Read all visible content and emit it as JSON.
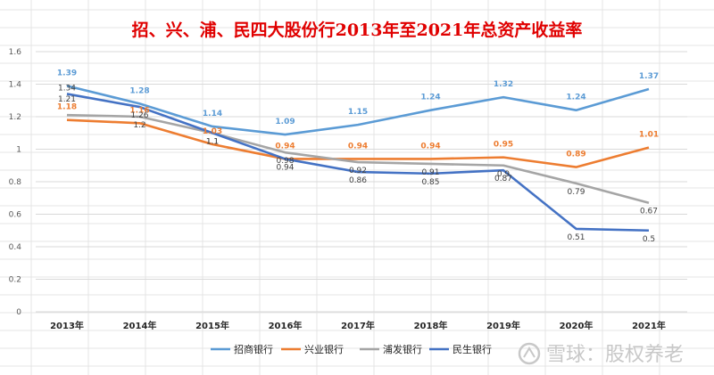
{
  "chart_data": {
    "type": "line",
    "title": "招、兴、浦、民四大股份行2013年至2021年总资产收益率",
    "categories": [
      "2013年",
      "2014年",
      "2015年",
      "2016年",
      "2017年",
      "2018年",
      "2019年",
      "2020年",
      "2021年"
    ],
    "ylim": [
      0,
      1.6
    ],
    "yticks": [
      "0",
      "0.2",
      "0.4",
      "0.6",
      "0.8",
      "1",
      "1.2",
      "1.4",
      "1.6"
    ],
    "grid": true,
    "legend_position": "bottom",
    "series": [
      {
        "name": "招商银行",
        "color": "#5b9bd5",
        "values": [
          1.39,
          1.28,
          1.14,
          1.09,
          1.15,
          1.24,
          1.32,
          1.24,
          1.37
        ],
        "labels": [
          "1.39",
          "1.28",
          "1.14",
          "1.09",
          "1.15",
          "1.24",
          "1.32",
          "1.24",
          "1.37"
        ],
        "bold": true
      },
      {
        "name": "兴业银行",
        "color": "#ed7d31",
        "values": [
          1.18,
          1.16,
          1.03,
          0.94,
          0.94,
          0.94,
          0.95,
          0.89,
          1.01
        ],
        "labels": [
          "1.18",
          "1.16",
          "1.03",
          "0.94",
          "0.94",
          "0.94",
          "0.95",
          "0.89",
          "1.01"
        ],
        "bold": true
      },
      {
        "name": "浦发银行",
        "color": "#a5a5a5",
        "values": [
          1.21,
          1.2,
          1.1,
          0.98,
          0.92,
          0.91,
          0.9,
          0.79,
          0.67
        ],
        "labels": [
          "1.21",
          "1.2",
          "1.1",
          "0.98",
          "0.92",
          "0.91",
          "0.9",
          "0.79",
          "0.67"
        ],
        "bold": false
      },
      {
        "name": "民生银行",
        "color": "#4472c4",
        "values": [
          1.34,
          1.26,
          1.1,
          0.94,
          0.86,
          0.85,
          0.87,
          0.51,
          0.5
        ],
        "labels": [
          "1.34",
          "1.26",
          "1.1",
          "0.94",
          "0.86",
          "0.85",
          "0.87",
          "0.51",
          "0.5"
        ],
        "bold": false
      }
    ]
  },
  "watermark": "雪球：股权养老"
}
